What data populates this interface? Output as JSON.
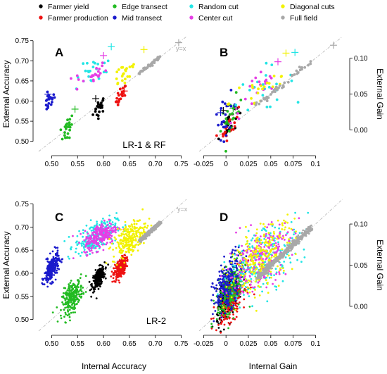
{
  "legend": [
    {
      "name": "Farmer yield",
      "color": "#000000"
    },
    {
      "name": "Farmer production",
      "color": "#ee1111"
    },
    {
      "name": "Edge transect",
      "color": "#22bb22"
    },
    {
      "name": "Mid transect",
      "color": "#1a1acc"
    },
    {
      "name": "Random cut",
      "color": "#22e5e5"
    },
    {
      "name": "Center cut",
      "color": "#e53ee5"
    },
    {
      "name": "Diagonal cuts",
      "color": "#f2f200"
    },
    {
      "name": "Full field",
      "color": "#a8a8a8"
    }
  ],
  "x_axis_labels": {
    "accuracy": "Internal Accuracy",
    "gain": "Internal Gain"
  },
  "y_axis_labels": {
    "accuracy": "External Accuracy",
    "gain": "External Gain"
  },
  "ticks": {
    "accuracy_x": [
      "0.50",
      "0.55",
      "0.60",
      "0.65",
      "0.70",
      "0.75"
    ],
    "accuracy_y": [
      "0.50",
      "0.55",
      "0.60",
      "0.65",
      "0.70",
      "0.75"
    ],
    "gain_x": [
      "-0.025",
      "0",
      "0.025",
      "0.05",
      "0.075",
      "0.1"
    ],
    "gain_y": [
      "0.00",
      "0.05",
      "0.10"
    ]
  },
  "chart_data": [
    {
      "panel": "A",
      "type": "scatter",
      "annotation": "LR-1 & RF",
      "diag_label": "y=x",
      "xlabel": "",
      "ylabel": "External Accuracy",
      "xlim": [
        0.475,
        0.76
      ],
      "ylim": [
        0.475,
        0.76
      ],
      "n_points_per_group": 22,
      "groups": [
        {
          "name": "Farmer yield",
          "mean_x": 0.592,
          "mean_y": 0.585,
          "spread": [
            0.006,
            0.012
          ]
        },
        {
          "name": "Farmer production",
          "mean_x": 0.634,
          "mean_y": 0.612,
          "spread": [
            0.005,
            0.012
          ]
        },
        {
          "name": "Edge transect",
          "mean_x": 0.53,
          "mean_y": 0.53,
          "spread": [
            0.006,
            0.016
          ]
        },
        {
          "name": "Mid transect",
          "mean_x": 0.495,
          "mean_y": 0.6,
          "spread": [
            0.005,
            0.013
          ]
        },
        {
          "name": "Random cut",
          "mean_x": 0.582,
          "mean_y": 0.672,
          "spread": [
            0.018,
            0.018
          ]
        },
        {
          "name": "Center cut",
          "mean_x": 0.574,
          "mean_y": 0.662,
          "spread": [
            0.016,
            0.016
          ]
        },
        {
          "name": "Diagonal cuts",
          "mean_x": 0.64,
          "mean_y": 0.67,
          "spread": [
            0.014,
            0.018
          ]
        },
        {
          "name": "Full field",
          "mean_x": 0.69,
          "mean_y": 0.69,
          "spread": [
            0.02,
            0.02
          ]
        }
      ],
      "crosses": [
        {
          "name": "Farmer yield",
          "x": 0.585,
          "y": 0.606
        },
        {
          "name": "Farmer production",
          "x": 0.64,
          "y": 0.625
        },
        {
          "name": "Edge transect",
          "x": 0.545,
          "y": 0.58
        },
        {
          "name": "Mid transect",
          "x": 0.493,
          "y": 0.617
        },
        {
          "name": "Random cut",
          "x": 0.615,
          "y": 0.735
        },
        {
          "name": "Center cut",
          "x": 0.6,
          "y": 0.713
        },
        {
          "name": "Diagonal cuts",
          "x": 0.678,
          "y": 0.728
        },
        {
          "name": "Full field",
          "x": 0.745,
          "y": 0.745
        }
      ]
    },
    {
      "panel": "B",
      "type": "scatter",
      "annotation": "",
      "diag_label": "",
      "xlabel": "",
      "ylabel": "External Gain",
      "xlim": [
        -0.03,
        0.135
      ],
      "ylim": [
        -0.03,
        0.13
      ],
      "n_points_per_group": 22,
      "groups": [
        {
          "name": "Farmer yield",
          "mean_x": 0.002,
          "mean_y": 0.008,
          "spread": [
            0.005,
            0.012
          ]
        },
        {
          "name": "Farmer production",
          "mean_x": 0.004,
          "mean_y": 0.006,
          "spread": [
            0.005,
            0.01
          ]
        },
        {
          "name": "Edge transect",
          "mean_x": 0.006,
          "mean_y": 0.018,
          "spread": [
            0.006,
            0.014
          ]
        },
        {
          "name": "Mid transect",
          "mean_x": 0.0,
          "mean_y": 0.02,
          "spread": [
            0.006,
            0.015
          ]
        },
        {
          "name": "Random cut",
          "mean_x": 0.04,
          "mean_y": 0.055,
          "spread": [
            0.018,
            0.018
          ]
        },
        {
          "name": "Center cut",
          "mean_x": 0.035,
          "mean_y": 0.052,
          "spread": [
            0.015,
            0.016
          ]
        },
        {
          "name": "Diagonal cuts",
          "mean_x": 0.04,
          "mean_y": 0.06,
          "spread": [
            0.018,
            0.02
          ]
        },
        {
          "name": "Full field",
          "mean_x": 0.065,
          "mean_y": 0.065,
          "spread": [
            0.03,
            0.03
          ]
        }
      ],
      "crosses": [
        {
          "name": "Farmer yield",
          "x": -0.003,
          "y": 0.027
        },
        {
          "name": "Mid transect",
          "x": -0.006,
          "y": 0.024
        },
        {
          "name": "Edge transect",
          "x": 0.008,
          "y": 0.03
        },
        {
          "name": "Center cut",
          "x": 0.058,
          "y": 0.095
        },
        {
          "name": "Diagonal cuts",
          "x": 0.067,
          "y": 0.107
        },
        {
          "name": "Random cut",
          "x": 0.077,
          "y": 0.108
        },
        {
          "name": "Full field",
          "x": 0.12,
          "y": 0.118
        }
      ]
    },
    {
      "panel": "C",
      "type": "scatter",
      "annotation": "LR-2",
      "diag_label": "y=x",
      "xlabel": "Internal Accuracy",
      "ylabel": "External Accuracy",
      "xlim": [
        0.475,
        0.76
      ],
      "ylim": [
        0.475,
        0.76
      ],
      "n_points_per_group": 240,
      "groups": [
        {
          "name": "Farmer yield",
          "mean_x": 0.59,
          "mean_y": 0.59,
          "spread": [
            0.006,
            0.012
          ]
        },
        {
          "name": "Farmer production",
          "mean_x": 0.632,
          "mean_y": 0.61,
          "spread": [
            0.006,
            0.012
          ]
        },
        {
          "name": "Edge transect",
          "mean_x": 0.54,
          "mean_y": 0.55,
          "spread": [
            0.01,
            0.018
          ]
        },
        {
          "name": "Mid transect",
          "mean_x": 0.5,
          "mean_y": 0.61,
          "spread": [
            0.007,
            0.016
          ]
        },
        {
          "name": "Random cut",
          "mean_x": 0.585,
          "mean_y": 0.68,
          "spread": [
            0.02,
            0.018
          ]
        },
        {
          "name": "Center cut",
          "mean_x": 0.595,
          "mean_y": 0.682,
          "spread": [
            0.016,
            0.016
          ]
        },
        {
          "name": "Diagonal cuts",
          "mean_x": 0.65,
          "mean_y": 0.675,
          "spread": [
            0.016,
            0.02
          ]
        },
        {
          "name": "Full field",
          "mean_x": 0.69,
          "mean_y": 0.69,
          "spread": [
            0.02,
            0.02
          ]
        }
      ],
      "crosses": []
    },
    {
      "panel": "D",
      "type": "scatter",
      "annotation": "",
      "diag_label": "",
      "xlabel": "Internal Gain",
      "ylabel": "External Gain",
      "xlim": [
        -0.03,
        0.135
      ],
      "ylim": [
        -0.03,
        0.13
      ],
      "n_points_per_group": 240,
      "groups": [
        {
          "name": "Farmer yield",
          "mean_x": 0.002,
          "mean_y": 0.01,
          "spread": [
            0.006,
            0.015
          ]
        },
        {
          "name": "Farmer production",
          "mean_x": 0.006,
          "mean_y": 0.01,
          "spread": [
            0.008,
            0.015
          ]
        },
        {
          "name": "Edge transect",
          "mean_x": 0.006,
          "mean_y": 0.02,
          "spread": [
            0.008,
            0.018
          ]
        },
        {
          "name": "Mid transect",
          "mean_x": 0.002,
          "mean_y": 0.028,
          "spread": [
            0.008,
            0.018
          ]
        },
        {
          "name": "Random cut",
          "mean_x": 0.042,
          "mean_y": 0.058,
          "spread": [
            0.02,
            0.022
          ]
        },
        {
          "name": "Center cut",
          "mean_x": 0.038,
          "mean_y": 0.058,
          "spread": [
            0.018,
            0.02
          ]
        },
        {
          "name": "Diagonal cuts",
          "mean_x": 0.04,
          "mean_y": 0.06,
          "spread": [
            0.018,
            0.022
          ]
        },
        {
          "name": "Full field",
          "mean_x": 0.065,
          "mean_y": 0.065,
          "spread": [
            0.03,
            0.03
          ]
        }
      ],
      "crosses": []
    }
  ]
}
